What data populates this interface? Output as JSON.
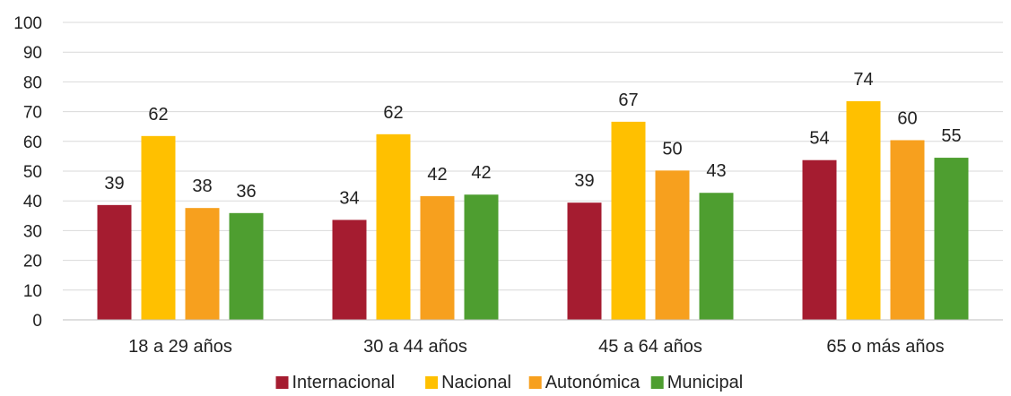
{
  "chart_data": {
    "type": "bar",
    "title": "",
    "xlabel": "",
    "ylabel": "",
    "ylim": [
      0,
      100
    ],
    "yticks": [
      0,
      10,
      20,
      30,
      40,
      50,
      60,
      70,
      80,
      90,
      100
    ],
    "grid": true,
    "legend_position": "bottom",
    "categories": [
      "18 a 29 años",
      "30 a 44 años",
      "45 a 64 años",
      "65 o más años"
    ],
    "series": [
      {
        "name": "Internacional",
        "color": "#a51c30",
        "values": [
          39,
          34,
          39,
          54
        ],
        "raw": [
          38.6,
          33.6,
          39.4,
          53.7
        ]
      },
      {
        "name": "Nacional",
        "color": "#ffc000",
        "values": [
          62,
          62,
          67,
          74
        ],
        "raw": [
          61.8,
          62.4,
          66.6,
          73.5
        ]
      },
      {
        "name": "Autonómica",
        "color": "#f7a01e",
        "values": [
          38,
          42,
          50,
          60
        ],
        "raw": [
          37.6,
          41.6,
          50.2,
          60.4
        ]
      },
      {
        "name": "Municipal",
        "color": "#4e9e30",
        "values": [
          36,
          42,
          43,
          55
        ],
        "raw": [
          35.9,
          42.1,
          42.7,
          54.5
        ]
      }
    ]
  }
}
